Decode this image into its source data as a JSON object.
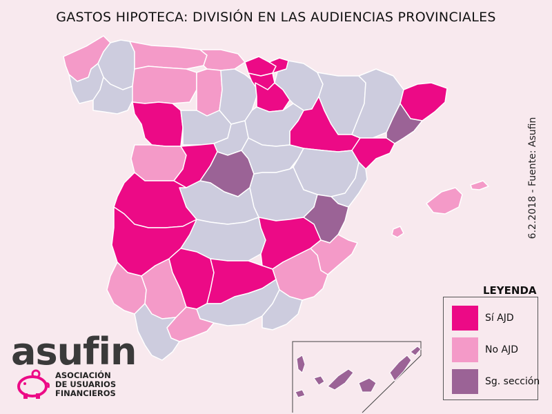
{
  "title": "GASTOS HIPOTECA: DIVISIÓN EN LAS AUDIENCIAS PROVINCIALES",
  "side_note": "6.2.2018 - Fuente: Asufin",
  "colors": {
    "background": "#f8e9ee",
    "si_ajd": "#ec0a86",
    "no_ajd": "#f49ac8",
    "sg_seccion": "#9b6396",
    "sin_dato": "#cdccde",
    "border": "#ffffff",
    "brand_pink": "#ec0a86",
    "logo_gray": "#3a3a3a"
  },
  "legend": {
    "title": "LEYENDA",
    "items": [
      {
        "label": "Sí AJD",
        "color": "#ec0a86"
      },
      {
        "label": "No AJD",
        "color": "#f49ac8"
      },
      {
        "label": "Sg. sección",
        "color": "#9b6396"
      }
    ]
  },
  "logo": {
    "word": "asufin",
    "line1": "ASOCIACIÓN",
    "line2": "DE USUARIOS",
    "line3": "FINANCIEROS",
    "icon": "piggy-bank-icon"
  },
  "provinces": [
    {
      "name": "A Coruña",
      "category": "no_ajd"
    },
    {
      "name": "Lugo",
      "category": "sin_dato"
    },
    {
      "name": "Pontevedra",
      "category": "sin_dato"
    },
    {
      "name": "Ourense",
      "category": "sin_dato"
    },
    {
      "name": "Asturias",
      "category": "no_ajd"
    },
    {
      "name": "Cantabria",
      "category": "no_ajd"
    },
    {
      "name": "Bizkaia",
      "category": "si_ajd"
    },
    {
      "name": "Gipuzkoa",
      "category": "si_ajd"
    },
    {
      "name": "Álava",
      "category": "si_ajd"
    },
    {
      "name": "La Rioja",
      "category": "si_ajd"
    },
    {
      "name": "Navarra",
      "category": "sin_dato"
    },
    {
      "name": "Huesca",
      "category": "sin_dato"
    },
    {
      "name": "Zaragoza",
      "category": "si_ajd"
    },
    {
      "name": "Teruel",
      "category": "sin_dato"
    },
    {
      "name": "Lleida",
      "category": "sin_dato"
    },
    {
      "name": "Girona",
      "category": "si_ajd"
    },
    {
      "name": "Barcelona",
      "category": "sg_seccion"
    },
    {
      "name": "Tarragona",
      "category": "si_ajd"
    },
    {
      "name": "León",
      "category": "no_ajd"
    },
    {
      "name": "Palencia",
      "category": "no_ajd"
    },
    {
      "name": "Burgos",
      "category": "sin_dato"
    },
    {
      "name": "Zamora",
      "category": "si_ajd"
    },
    {
      "name": "Valladolid",
      "category": "sin_dato"
    },
    {
      "name": "Soria",
      "category": "sin_dato"
    },
    {
      "name": "Salamanca",
      "category": "no_ajd"
    },
    {
      "name": "Segovia",
      "category": "sin_dato"
    },
    {
      "name": "Ávila",
      "category": "si_ajd"
    },
    {
      "name": "Madrid",
      "category": "sg_seccion"
    },
    {
      "name": "Guadalajara",
      "category": "sin_dato"
    },
    {
      "name": "Cuenca",
      "category": "sin_dato"
    },
    {
      "name": "Toledo",
      "category": "sin_dato"
    },
    {
      "name": "Cáceres",
      "category": "si_ajd"
    },
    {
      "name": "Badajoz",
      "category": "si_ajd"
    },
    {
      "name": "Ciudad Real",
      "category": "sin_dato"
    },
    {
      "name": "Albacete",
      "category": "si_ajd"
    },
    {
      "name": "Castellón",
      "category": "sin_dato"
    },
    {
      "name": "Valencia",
      "category": "sg_seccion"
    },
    {
      "name": "Alicante",
      "category": "no_ajd"
    },
    {
      "name": "Murcia",
      "category": "no_ajd"
    },
    {
      "name": "Córdoba",
      "category": "si_ajd"
    },
    {
      "name": "Jaén",
      "category": "si_ajd"
    },
    {
      "name": "Huelva",
      "category": "no_ajd"
    },
    {
      "name": "Sevilla",
      "category": "no_ajd"
    },
    {
      "name": "Granada",
      "category": "sin_dato"
    },
    {
      "name": "Almería",
      "category": "sin_dato"
    },
    {
      "name": "Málaga",
      "category": "no_ajd"
    },
    {
      "name": "Cádiz",
      "category": "sin_dato"
    },
    {
      "name": "Illes Balears",
      "category": "no_ajd"
    },
    {
      "name": "Canarias",
      "category": "sg_seccion"
    }
  ]
}
